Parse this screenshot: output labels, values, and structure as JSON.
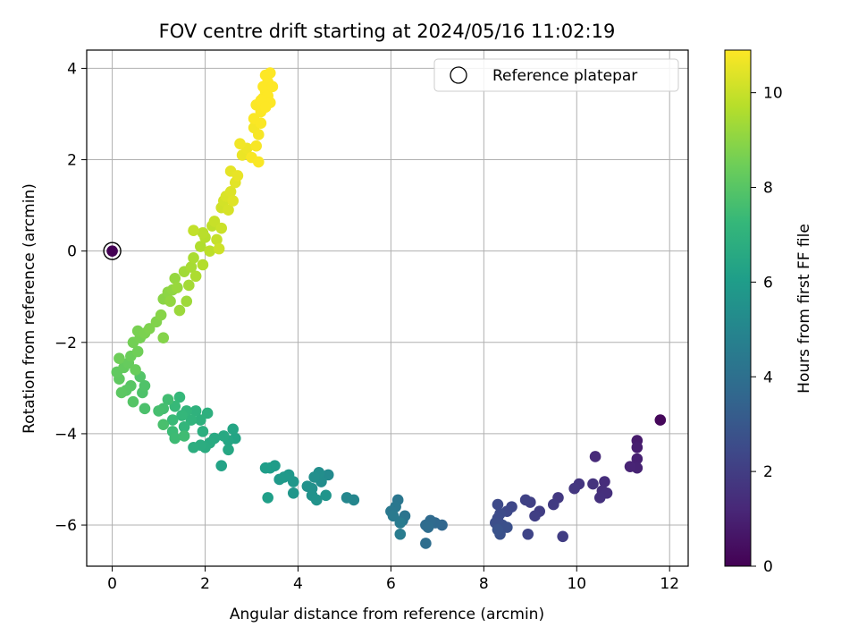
{
  "chart_data": {
    "type": "scatter",
    "title": "FOV centre drift starting at 2024/05/16 11:02:19",
    "xlabel": "Angular distance from reference (arcmin)",
    "ylabel": "Rotation from reference (arcmin)",
    "xlim": [
      -0.55,
      12.4
    ],
    "ylim": [
      -6.9,
      4.4
    ],
    "xticks": [
      0,
      2,
      4,
      6,
      8,
      10,
      12
    ],
    "yticks": [
      -6,
      -4,
      -2,
      0,
      2,
      4
    ],
    "grid": true,
    "legend": {
      "placement": "top-right",
      "entries": [
        "Reference platepar"
      ]
    },
    "reference": {
      "x": 0,
      "y": 0,
      "hours": 0
    },
    "colorbar": {
      "label": "Hours from first FF file",
      "range": [
        0,
        10.9
      ],
      "ticks": [
        0,
        2,
        4,
        6,
        8,
        10
      ],
      "colormap": [
        "#440154",
        "#482878",
        "#3e4989",
        "#31688e",
        "#26828e",
        "#1f9e89",
        "#35b779",
        "#6ece58",
        "#b5de2b",
        "#fde725"
      ]
    },
    "series": [
      {
        "points": [
          {
            "x": 11.8,
            "y": -3.7,
            "h": 0.2
          },
          {
            "x": 11.3,
            "y": -4.15,
            "h": 0.8
          },
          {
            "x": 11.3,
            "y": -4.3,
            "h": 0.9
          },
          {
            "x": 11.3,
            "y": -4.55,
            "h": 1.0
          },
          {
            "x": 11.3,
            "y": -4.75,
            "h": 1.05
          },
          {
            "x": 11.15,
            "y": -4.72,
            "h": 1.1
          },
          {
            "x": 10.4,
            "y": -4.5,
            "h": 1.3
          },
          {
            "x": 10.6,
            "y": -5.05,
            "h": 1.4
          },
          {
            "x": 10.55,
            "y": -5.25,
            "h": 1.45
          },
          {
            "x": 10.65,
            "y": -5.3,
            "h": 1.5
          },
          {
            "x": 10.5,
            "y": -5.4,
            "h": 1.55
          },
          {
            "x": 10.35,
            "y": -5.1,
            "h": 1.6
          },
          {
            "x": 10.05,
            "y": -5.1,
            "h": 1.7
          },
          {
            "x": 9.95,
            "y": -5.2,
            "h": 1.75
          },
          {
            "x": 9.6,
            "y": -5.4,
            "h": 1.85
          },
          {
            "x": 9.5,
            "y": -5.55,
            "h": 1.9
          },
          {
            "x": 9.2,
            "y": -5.7,
            "h": 2.0
          },
          {
            "x": 9.1,
            "y": -5.8,
            "h": 2.05
          },
          {
            "x": 9.0,
            "y": -5.5,
            "h": 2.1
          },
          {
            "x": 8.9,
            "y": -5.45,
            "h": 2.15
          },
          {
            "x": 9.7,
            "y": -6.25,
            "h": 2.0
          },
          {
            "x": 8.95,
            "y": -6.2,
            "h": 2.25
          },
          {
            "x": 8.6,
            "y": -5.6,
            "h": 2.35
          },
          {
            "x": 8.5,
            "y": -5.7,
            "h": 2.4
          },
          {
            "x": 8.3,
            "y": -5.55,
            "h": 2.45
          },
          {
            "x": 8.35,
            "y": -5.75,
            "h": 2.5
          },
          {
            "x": 8.3,
            "y": -5.85,
            "h": 2.55
          },
          {
            "x": 8.25,
            "y": -5.95,
            "h": 2.6
          },
          {
            "x": 8.4,
            "y": -6.0,
            "h": 2.65
          },
          {
            "x": 8.5,
            "y": -6.05,
            "h": 2.7
          },
          {
            "x": 8.35,
            "y": -6.2,
            "h": 2.75
          },
          {
            "x": 8.3,
            "y": -6.1,
            "h": 2.8
          },
          {
            "x": 7.1,
            "y": -6.0,
            "h": 3.6
          },
          {
            "x": 6.95,
            "y": -5.95,
            "h": 3.7
          },
          {
            "x": 6.85,
            "y": -5.9,
            "h": 3.75
          },
          {
            "x": 6.75,
            "y": -6.0,
            "h": 3.8
          },
          {
            "x": 6.8,
            "y": -6.05,
            "h": 3.85
          },
          {
            "x": 6.75,
            "y": -6.4,
            "h": 3.9
          },
          {
            "x": 6.3,
            "y": -5.8,
            "h": 4.2
          },
          {
            "x": 6.25,
            "y": -5.9,
            "h": 4.25
          },
          {
            "x": 6.15,
            "y": -5.45,
            "h": 4.3
          },
          {
            "x": 6.1,
            "y": -5.6,
            "h": 4.35
          },
          {
            "x": 6.0,
            "y": -5.7,
            "h": 4.4
          },
          {
            "x": 6.05,
            "y": -5.8,
            "h": 4.45
          },
          {
            "x": 6.2,
            "y": -5.95,
            "h": 4.5
          },
          {
            "x": 6.2,
            "y": -6.2,
            "h": 4.55
          },
          {
            "x": 5.2,
            "y": -5.45,
            "h": 5.0
          },
          {
            "x": 5.05,
            "y": -5.4,
            "h": 5.05
          },
          {
            "x": 4.65,
            "y": -4.9,
            "h": 5.2
          },
          {
            "x": 4.5,
            "y": -5.05,
            "h": 5.3
          },
          {
            "x": 4.45,
            "y": -4.85,
            "h": 5.35
          },
          {
            "x": 4.35,
            "y": -4.95,
            "h": 5.4
          },
          {
            "x": 4.3,
            "y": -5.2,
            "h": 5.45
          },
          {
            "x": 4.2,
            "y": -5.15,
            "h": 5.5
          },
          {
            "x": 4.3,
            "y": -5.35,
            "h": 5.55
          },
          {
            "x": 4.4,
            "y": -5.45,
            "h": 5.6
          },
          {
            "x": 4.6,
            "y": -5.35,
            "h": 5.65
          },
          {
            "x": 3.9,
            "y": -5.3,
            "h": 5.7
          },
          {
            "x": 3.9,
            "y": -5.05,
            "h": 5.75
          },
          {
            "x": 3.8,
            "y": -4.9,
            "h": 5.8
          },
          {
            "x": 3.7,
            "y": -4.95,
            "h": 5.85
          },
          {
            "x": 3.6,
            "y": -5.0,
            "h": 5.9
          },
          {
            "x": 3.5,
            "y": -4.7,
            "h": 5.95
          },
          {
            "x": 3.4,
            "y": -4.75,
            "h": 6.0
          },
          {
            "x": 3.3,
            "y": -4.75,
            "h": 6.05
          },
          {
            "x": 3.35,
            "y": -5.4,
            "h": 6.1
          },
          {
            "x": 2.35,
            "y": -4.7,
            "h": 6.3
          },
          {
            "x": 2.65,
            "y": -4.1,
            "h": 6.35
          },
          {
            "x": 2.6,
            "y": -3.9,
            "h": 6.4
          },
          {
            "x": 2.5,
            "y": -4.15,
            "h": 6.45
          },
          {
            "x": 2.5,
            "y": -4.35,
            "h": 6.5
          },
          {
            "x": 2.4,
            "y": -4.05,
            "h": 6.55
          },
          {
            "x": 2.2,
            "y": -4.1,
            "h": 6.6
          },
          {
            "x": 2.1,
            "y": -4.2,
            "h": 6.65
          },
          {
            "x": 2.0,
            "y": -4.3,
            "h": 6.7
          },
          {
            "x": 1.9,
            "y": -4.25,
            "h": 6.75
          },
          {
            "x": 1.75,
            "y": -4.3,
            "h": 6.8
          },
          {
            "x": 1.95,
            "y": -3.95,
            "h": 6.85
          },
          {
            "x": 2.05,
            "y": -3.55,
            "h": 6.9
          },
          {
            "x": 1.9,
            "y": -3.7,
            "h": 6.95
          },
          {
            "x": 1.8,
            "y": -3.5,
            "h": 7.0
          },
          {
            "x": 1.7,
            "y": -3.7,
            "h": 7.05
          },
          {
            "x": 1.6,
            "y": -3.5,
            "h": 7.1
          },
          {
            "x": 1.55,
            "y": -3.85,
            "h": 7.15
          },
          {
            "x": 1.5,
            "y": -3.6,
            "h": 7.2
          },
          {
            "x": 1.45,
            "y": -3.2,
            "h": 7.25
          },
          {
            "x": 1.35,
            "y": -3.4,
            "h": 7.3
          },
          {
            "x": 1.3,
            "y": -3.7,
            "h": 7.35
          },
          {
            "x": 1.3,
            "y": -3.95,
            "h": 7.4
          },
          {
            "x": 1.35,
            "y": -4.1,
            "h": 7.45
          },
          {
            "x": 1.55,
            "y": -4.05,
            "h": 7.5
          },
          {
            "x": 1.2,
            "y": -3.25,
            "h": 7.55
          },
          {
            "x": 1.1,
            "y": -3.45,
            "h": 7.6
          },
          {
            "x": 1.0,
            "y": -3.5,
            "h": 7.65
          },
          {
            "x": 1.1,
            "y": -3.8,
            "h": 7.7
          },
          {
            "x": 0.7,
            "y": -3.45,
            "h": 7.75
          },
          {
            "x": 0.65,
            "y": -3.1,
            "h": 7.8
          },
          {
            "x": 0.7,
            "y": -2.95,
            "h": 7.85
          },
          {
            "x": 0.6,
            "y": -2.75,
            "h": 7.9
          },
          {
            "x": 0.45,
            "y": -3.3,
            "h": 7.95
          },
          {
            "x": 0.4,
            "y": -2.95,
            "h": 8.0
          },
          {
            "x": 0.3,
            "y": -3.05,
            "h": 8.05
          },
          {
            "x": 0.2,
            "y": -3.1,
            "h": 8.1
          },
          {
            "x": 0.15,
            "y": -2.8,
            "h": 8.15
          },
          {
            "x": 0.1,
            "y": -2.65,
            "h": 8.2
          },
          {
            "x": 0.25,
            "y": -2.55,
            "h": 8.25
          },
          {
            "x": 0.35,
            "y": -2.45,
            "h": 8.3
          },
          {
            "x": 0.5,
            "y": -2.6,
            "h": 8.35
          },
          {
            "x": 0.4,
            "y": -2.3,
            "h": 8.4
          },
          {
            "x": 0.15,
            "y": -2.35,
            "h": 8.45
          },
          {
            "x": 0.55,
            "y": -2.2,
            "h": 8.5
          },
          {
            "x": 0.45,
            "y": -2.0,
            "h": 8.55
          },
          {
            "x": 0.6,
            "y": -1.9,
            "h": 8.6
          },
          {
            "x": 0.55,
            "y": -1.75,
            "h": 8.65
          },
          {
            "x": 0.7,
            "y": -1.8,
            "h": 8.7
          },
          {
            "x": 0.8,
            "y": -1.7,
            "h": 8.75
          },
          {
            "x": 0.95,
            "y": -1.55,
            "h": 8.8
          },
          {
            "x": 1.1,
            "y": -1.9,
            "h": 8.85
          },
          {
            "x": 1.05,
            "y": -1.4,
            "h": 8.9
          },
          {
            "x": 1.1,
            "y": -1.05,
            "h": 8.95
          },
          {
            "x": 1.2,
            "y": -0.9,
            "h": 9.0
          },
          {
            "x": 1.3,
            "y": -0.85,
            "h": 9.05
          },
          {
            "x": 1.25,
            "y": -1.1,
            "h": 9.1
          },
          {
            "x": 1.35,
            "y": -0.6,
            "h": 9.15
          },
          {
            "x": 1.4,
            "y": -0.8,
            "h": 9.2
          },
          {
            "x": 1.45,
            "y": -1.3,
            "h": 9.25
          },
          {
            "x": 1.6,
            "y": -1.1,
            "h": 9.3
          },
          {
            "x": 1.55,
            "y": -0.45,
            "h": 9.35
          },
          {
            "x": 1.65,
            "y": -0.75,
            "h": 9.4
          },
          {
            "x": 1.7,
            "y": -0.35,
            "h": 9.45
          },
          {
            "x": 1.75,
            "y": -0.15,
            "h": 9.5
          },
          {
            "x": 1.8,
            "y": -0.55,
            "h": 9.55
          },
          {
            "x": 1.9,
            "y": 0.1,
            "h": 9.6
          },
          {
            "x": 1.95,
            "y": -0.3,
            "h": 9.65
          },
          {
            "x": 2.0,
            "y": 0.3,
            "h": 9.7
          },
          {
            "x": 1.95,
            "y": 0.4,
            "h": 9.75
          },
          {
            "x": 2.1,
            "y": 0.0,
            "h": 9.8
          },
          {
            "x": 2.15,
            "y": 0.55,
            "h": 9.85
          },
          {
            "x": 1.75,
            "y": 0.45,
            "h": 9.9
          },
          {
            "x": 2.25,
            "y": 0.25,
            "h": 9.95
          },
          {
            "x": 2.2,
            "y": 0.65,
            "h": 10.0
          },
          {
            "x": 2.35,
            "y": 0.5,
            "h": 10.05
          },
          {
            "x": 2.3,
            "y": 0.05,
            "h": 10.1
          },
          {
            "x": 2.35,
            "y": 0.95,
            "h": 10.15
          },
          {
            "x": 2.4,
            "y": 1.1,
            "h": 10.2
          },
          {
            "x": 2.5,
            "y": 0.9,
            "h": 10.25
          },
          {
            "x": 2.45,
            "y": 1.2,
            "h": 10.3
          },
          {
            "x": 2.55,
            "y": 1.3,
            "h": 10.35
          },
          {
            "x": 2.6,
            "y": 1.1,
            "h": 10.4
          },
          {
            "x": 2.65,
            "y": 1.5,
            "h": 10.45
          },
          {
            "x": 2.55,
            "y": 1.75,
            "h": 10.5
          },
          {
            "x": 2.7,
            "y": 1.65,
            "h": 10.55
          },
          {
            "x": 2.8,
            "y": 2.1,
            "h": 10.6
          },
          {
            "x": 2.9,
            "y": 2.25,
            "h": 10.65
          },
          {
            "x": 2.75,
            "y": 2.35,
            "h": 10.7
          },
          {
            "x": 3.05,
            "y": 2.7,
            "h": 10.75
          },
          {
            "x": 3.15,
            "y": 2.55,
            "h": 10.78
          },
          {
            "x": 3.1,
            "y": 2.3,
            "h": 10.8
          },
          {
            "x": 3.0,
            "y": 2.05,
            "h": 10.82
          },
          {
            "x": 3.15,
            "y": 1.95,
            "h": 10.84
          },
          {
            "x": 3.05,
            "y": 2.9,
            "h": 10.85
          },
          {
            "x": 3.2,
            "y": 3.05,
            "h": 10.86
          },
          {
            "x": 3.1,
            "y": 3.2,
            "h": 10.87
          },
          {
            "x": 3.25,
            "y": 3.35,
            "h": 10.88
          },
          {
            "x": 3.3,
            "y": 3.5,
            "h": 10.89
          },
          {
            "x": 3.35,
            "y": 3.7,
            "h": 10.9
          },
          {
            "x": 3.3,
            "y": 3.85,
            "h": 10.9
          },
          {
            "x": 3.4,
            "y": 3.9,
            "h": 10.9
          },
          {
            "x": 3.25,
            "y": 3.6,
            "h": 10.9
          },
          {
            "x": 3.35,
            "y": 3.4,
            "h": 10.9
          },
          {
            "x": 3.4,
            "y": 3.25,
            "h": 10.9
          },
          {
            "x": 3.45,
            "y": 3.6,
            "h": 10.9
          },
          {
            "x": 3.2,
            "y": 3.3,
            "h": 10.9
          },
          {
            "x": 3.3,
            "y": 3.15,
            "h": 10.9
          },
          {
            "x": 3.2,
            "y": 2.8,
            "h": 10.85
          }
        ]
      }
    ]
  }
}
